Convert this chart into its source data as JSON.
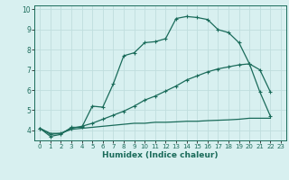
{
  "line1_x": [
    0,
    1,
    2,
    3,
    4,
    5,
    6,
    7,
    8,
    9,
    10,
    11,
    12,
    13,
    14,
    15,
    16,
    17,
    18,
    19,
    20,
    21,
    22
  ],
  "line1_y": [
    4.1,
    3.7,
    3.8,
    4.15,
    4.15,
    5.2,
    5.15,
    6.3,
    7.7,
    7.85,
    8.35,
    8.4,
    8.55,
    9.55,
    9.65,
    9.6,
    9.5,
    9.0,
    8.85,
    8.35,
    7.3,
    7.0,
    5.9
  ],
  "line2_x": [
    0,
    1,
    2,
    3,
    4,
    5,
    6,
    7,
    8,
    9,
    10,
    11,
    12,
    13,
    14,
    15,
    16,
    17,
    18,
    19,
    20,
    21,
    22
  ],
  "line2_y": [
    4.1,
    3.8,
    3.85,
    4.1,
    4.2,
    4.35,
    4.55,
    4.75,
    4.95,
    5.2,
    5.5,
    5.7,
    5.95,
    6.2,
    6.5,
    6.7,
    6.9,
    7.05,
    7.15,
    7.25,
    7.3,
    5.9,
    4.7
  ],
  "line3_x": [
    0,
    1,
    2,
    3,
    4,
    5,
    6,
    7,
    8,
    9,
    10,
    11,
    12,
    13,
    14,
    15,
    16,
    17,
    18,
    19,
    20,
    21,
    22
  ],
  "line3_y": [
    4.1,
    3.85,
    3.85,
    4.05,
    4.1,
    4.15,
    4.2,
    4.25,
    4.3,
    4.35,
    4.35,
    4.4,
    4.4,
    4.42,
    4.45,
    4.45,
    4.48,
    4.5,
    4.52,
    4.55,
    4.6,
    4.6,
    4.6
  ],
  "line_color": "#1a6b5a",
  "bg_color": "#d8f0f0",
  "grid_color": "#c0dede",
  "xlabel": "Humidex (Indice chaleur)",
  "xlim": [
    -0.5,
    23.5
  ],
  "ylim": [
    3.5,
    10.2
  ],
  "yticks": [
    4,
    5,
    6,
    7,
    8,
    9,
    10
  ],
  "xticks": [
    0,
    1,
    2,
    3,
    4,
    5,
    6,
    7,
    8,
    9,
    10,
    11,
    12,
    13,
    14,
    15,
    16,
    17,
    18,
    19,
    20,
    21,
    22,
    23
  ],
  "marker": "+",
  "marker_size": 3,
  "line_width": 0.9
}
